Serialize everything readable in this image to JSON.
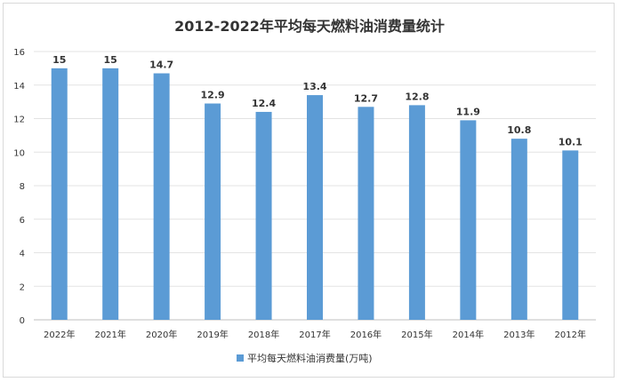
{
  "chart_data": {
    "type": "bar",
    "title": "2012-2022年平均每天燃料油消费量统计",
    "categories": [
      "2022年",
      "2021年",
      "2020年",
      "2019年",
      "2018年",
      "2017年",
      "2016年",
      "2015年",
      "2014年",
      "2013年",
      "2012年"
    ],
    "series": [
      {
        "name": "平均每天燃料油消费量(万吨)",
        "values": [
          15,
          15,
          14.7,
          12.9,
          12.4,
          13.4,
          12.7,
          12.8,
          11.9,
          10.8,
          10.1
        ]
      }
    ],
    "xlabel": "",
    "ylabel": "",
    "ylim": [
      0,
      16
    ],
    "yticks": [
      0,
      2,
      4,
      6,
      8,
      10,
      12,
      14,
      16
    ],
    "grid": true,
    "legend": "bottom",
    "color": "#5b9bd5"
  }
}
